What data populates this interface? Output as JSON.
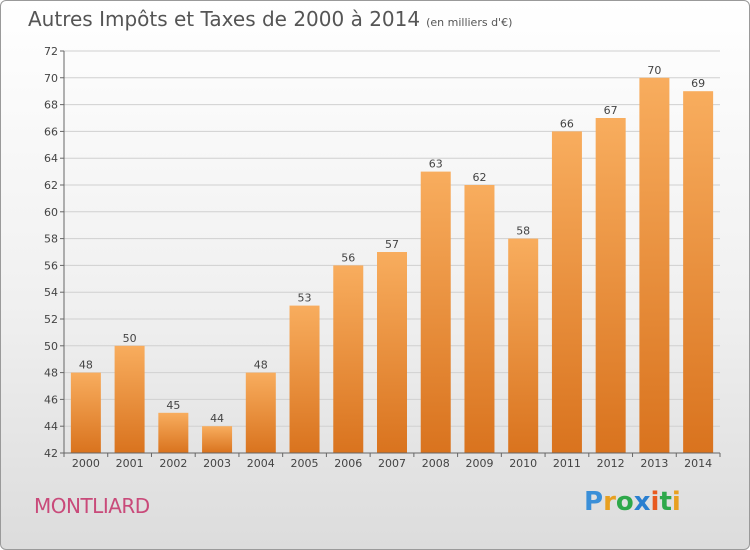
{
  "chart_title": "Autres Impôts et Taxes de 2000 à 2014",
  "chart_subtitle": "(en milliers d'€)",
  "location": "MONTLIARD",
  "logo": {
    "letters": [
      "P",
      "r",
      "o",
      "x",
      "i",
      "t",
      "i"
    ],
    "colors": [
      "#3a8fd8",
      "#e8a020",
      "#2ea84a",
      "#2a7fd0",
      "#e85a20",
      "#2ea84a",
      "#e8a020"
    ]
  },
  "colors": {
    "bar_light": "#f8ad5e",
    "bar_dark": "#d9731e",
    "grid": "#d0d0d0",
    "text": "#444444"
  },
  "chart_data": {
    "type": "bar",
    "title": "Autres Impôts et Taxes de 2000 à 2014",
    "subtitle": "(en milliers d'€)",
    "categories": [
      "2000",
      "2001",
      "2002",
      "2003",
      "2004",
      "2005",
      "2006",
      "2007",
      "2008",
      "2009",
      "2010",
      "2011",
      "2012",
      "2013",
      "2014"
    ],
    "values": [
      48,
      50,
      45,
      44,
      48,
      53,
      56,
      57,
      63,
      62,
      58,
      66,
      67,
      70,
      69
    ],
    "ylim": [
      42,
      72
    ],
    "yticks": [
      42,
      44,
      46,
      48,
      50,
      52,
      54,
      56,
      58,
      60,
      62,
      64,
      66,
      68,
      70,
      72
    ],
    "grid": true,
    "xlabel": "",
    "ylabel": ""
  }
}
